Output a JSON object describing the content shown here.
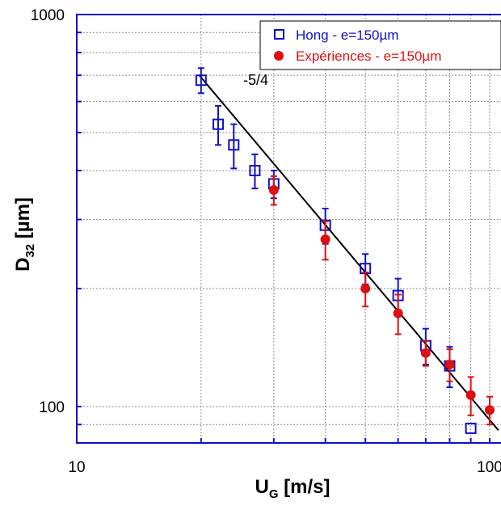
{
  "chart_data": {
    "type": "scatter",
    "x_axis": {
      "label_main": "U",
      "label_sub": "G",
      "label_unit": " [m/s]",
      "scale": "log",
      "range": [
        10,
        105
      ],
      "tick_labels": [
        "10",
        "100"
      ]
    },
    "y_axis": {
      "label_main": "D",
      "label_sub": "32",
      "label_unit": " [µm]",
      "scale": "log",
      "range": [
        80,
        1000
      ],
      "tick_labels": [
        "100",
        "1000"
      ]
    },
    "grid": true,
    "legend_position": "top-right",
    "series": [
      {
        "name": "Hong - e=150µm",
        "marker": "open-square",
        "color": "#1010c8",
        "points": [
          {
            "x": 20,
            "y": 680,
            "err": 50
          },
          {
            "x": 22,
            "y": 525,
            "err": 60
          },
          {
            "x": 24,
            "y": 465,
            "err": 60
          },
          {
            "x": 27,
            "y": 400,
            "err": 40
          },
          {
            "x": 30,
            "y": 370,
            "err": 30
          },
          {
            "x": 40,
            "y": 290,
            "err": 30
          },
          {
            "x": 50,
            "y": 225,
            "err": 20
          },
          {
            "x": 60,
            "y": 192,
            "err": 20
          },
          {
            "x": 70,
            "y": 143,
            "err": 15
          },
          {
            "x": 80,
            "y": 127,
            "err": 15
          },
          {
            "x": 90,
            "y": 88,
            "err": 0
          }
        ]
      },
      {
        "name": "Expériences - e=150µm",
        "marker": "filled-circle",
        "color": "#dd1010",
        "points": [
          {
            "x": 30,
            "y": 357,
            "err": 30
          },
          {
            "x": 40,
            "y": 267,
            "err": 30
          },
          {
            "x": 50,
            "y": 200,
            "err": 20
          },
          {
            "x": 60,
            "y": 173,
            "err": 20
          },
          {
            "x": 70,
            "y": 137,
            "err": 10
          },
          {
            "x": 80,
            "y": 128,
            "err": 12
          },
          {
            "x": 90,
            "y": 107,
            "err": 12
          },
          {
            "x": 100,
            "y": 98,
            "err": 8
          }
        ]
      }
    ],
    "fit_line": {
      "slope": -1.25,
      "points": [
        [
          19.8,
          700
        ],
        [
          105,
          87
        ]
      ],
      "annotation": "-5/4",
      "annotation_at": [
        25.3,
        590
      ]
    },
    "colors": {
      "frame": "#1010c8",
      "hong": "#1010c8",
      "experiences": "#dd1010",
      "fit": "#000000"
    }
  }
}
